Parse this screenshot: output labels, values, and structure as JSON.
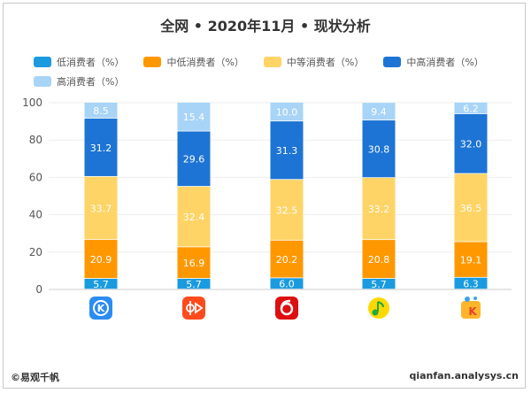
{
  "chart_data": {
    "type": "bar",
    "stacked": true,
    "title": "全网 • 2020年11月 • 现状分析",
    "categories": [
      "kugou-icon",
      "kuaiyin-icon",
      "netease-cloud-music-icon",
      "qq-music-icon",
      "kuwo-icon"
    ],
    "series": [
      {
        "name": "低消费者（%）",
        "color": "#1a9be0",
        "values": [
          5.7,
          5.7,
          6.0,
          5.7,
          6.3
        ]
      },
      {
        "name": "中低消费者（%）",
        "color": "#ff9800",
        "values": [
          20.9,
          16.9,
          20.2,
          20.8,
          19.1
        ]
      },
      {
        "name": "中等消费者（%）",
        "color": "#ffd466",
        "values": [
          33.7,
          32.4,
          32.5,
          33.2,
          36.5
        ]
      },
      {
        "name": "中高消费者（%）",
        "color": "#1d74d4",
        "values": [
          31.2,
          29.6,
          31.3,
          30.8,
          32.0
        ]
      },
      {
        "name": "高消费者（%）",
        "color": "#a8d4f7",
        "values": [
          8.5,
          15.4,
          10.0,
          9.4,
          6.2
        ]
      }
    ],
    "yticks": [
      "0",
      "20",
      "40",
      "60",
      "80",
      "100"
    ],
    "ylim": [
      0,
      100
    ],
    "grid": true,
    "legend": "top"
  },
  "footer": {
    "left": "©易观千帆",
    "right": "qianfan.analysys.cn"
  }
}
